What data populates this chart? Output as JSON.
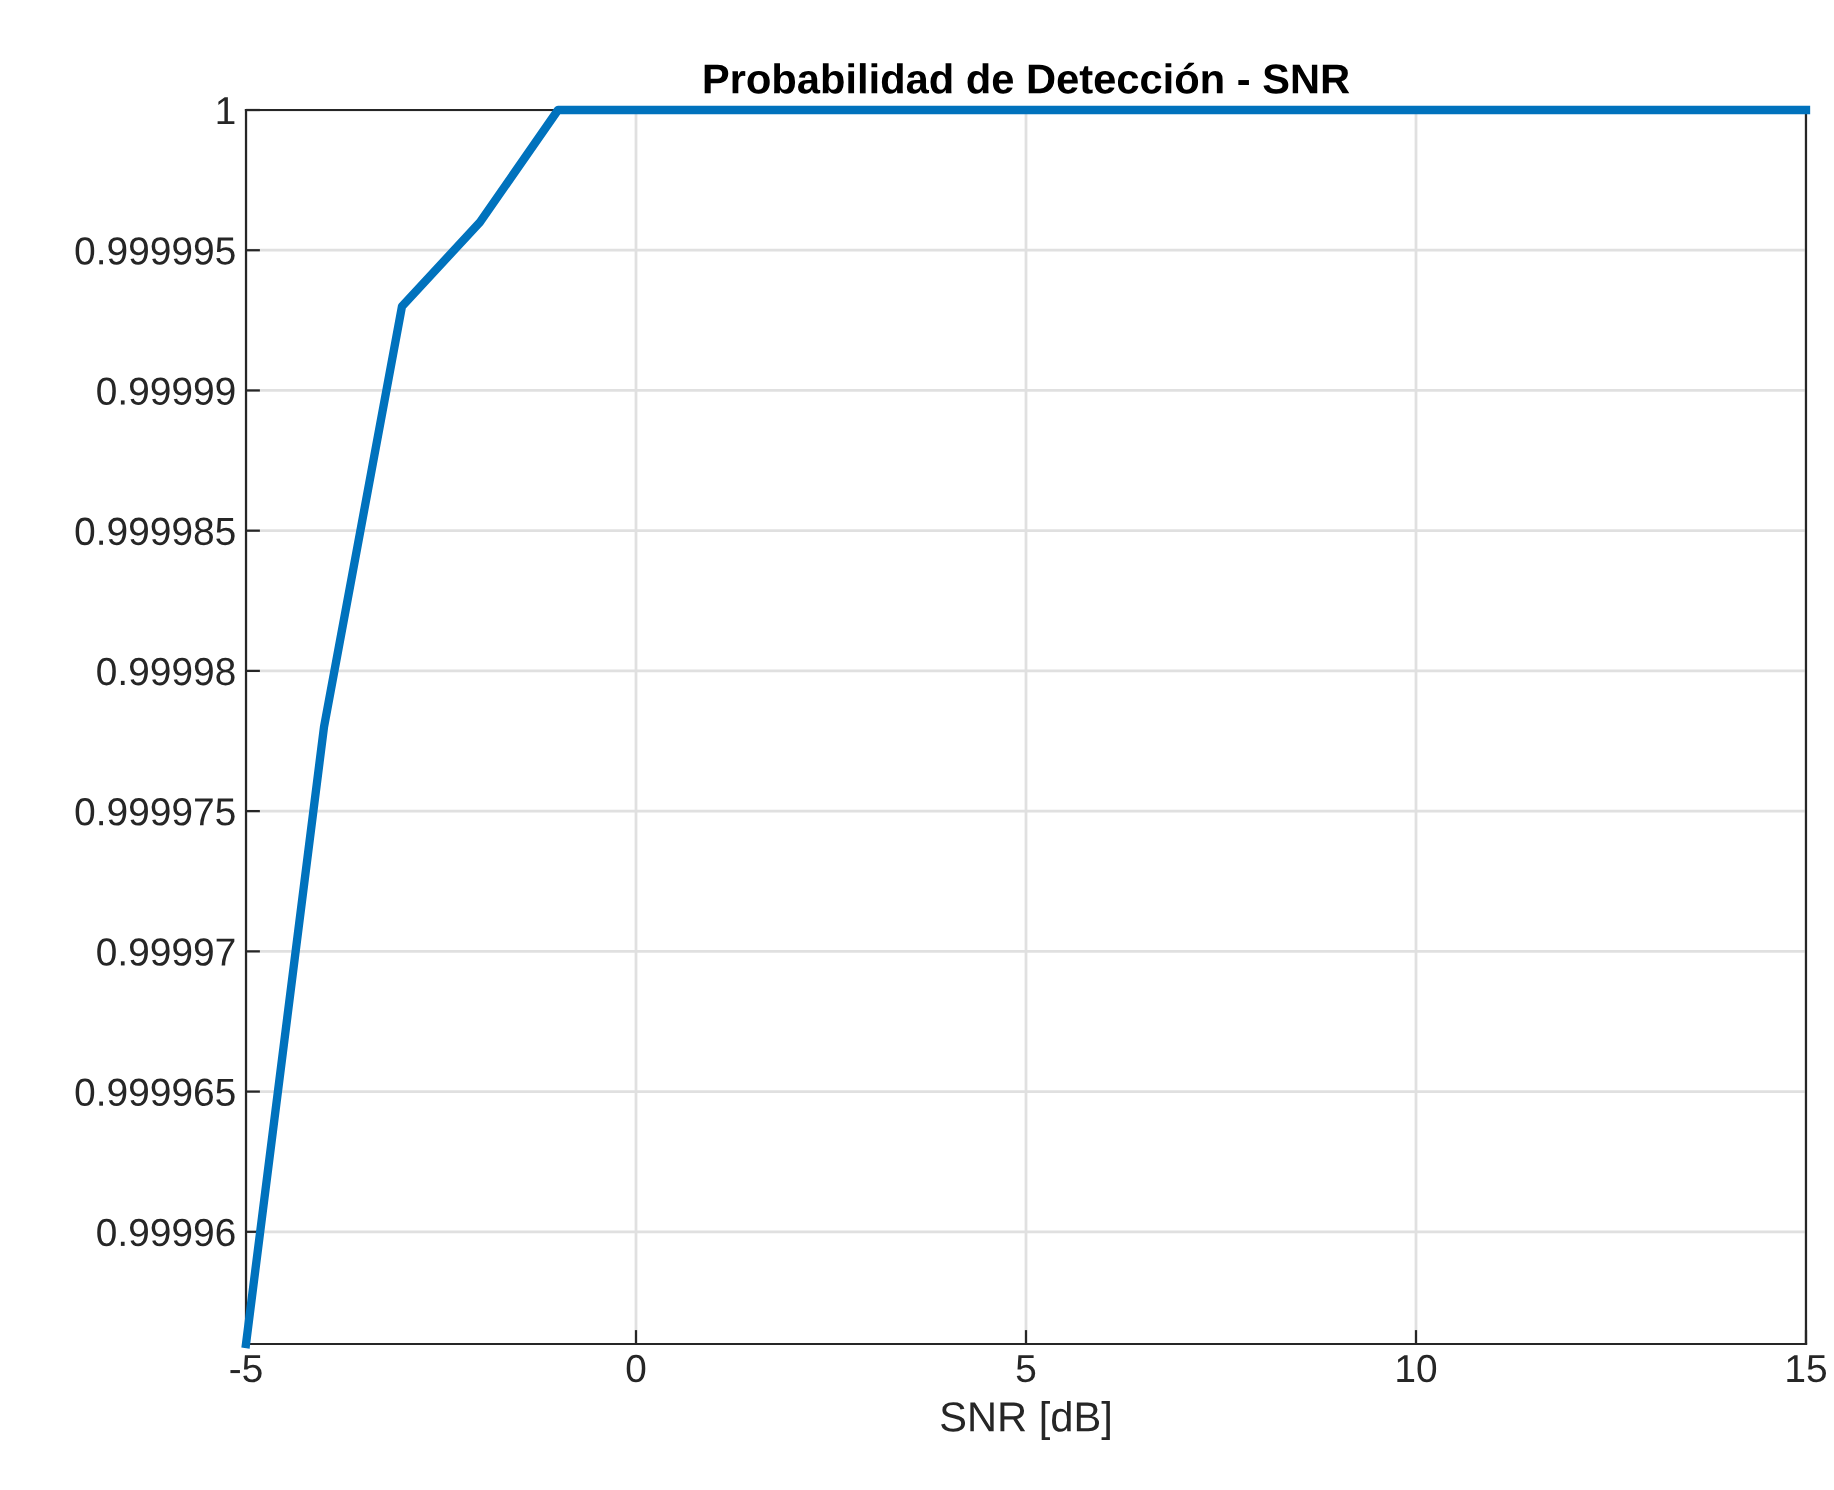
{
  "chart_data": {
    "type": "line",
    "title": "Probabilidad de Detección - SNR",
    "xlabel": "SNR [dB]",
    "x": [
      -5,
      -4,
      -3,
      -2,
      -1,
      0,
      1,
      2,
      3,
      4,
      5,
      6,
      7,
      8,
      9,
      10,
      11,
      12,
      13,
      14,
      15
    ],
    "series": [
      {
        "color": "#0072bd",
        "values": [
          0.999956,
          0.999978,
          0.999993,
          0.999996,
          1,
          1,
          1,
          1,
          1,
          1,
          1,
          1,
          1,
          1,
          1,
          1,
          1,
          1,
          1,
          1,
          1
        ]
      }
    ],
    "xlim": [
      -5,
      15
    ],
    "xticks": [
      -5,
      0,
      5,
      10,
      15
    ],
    "ylim": [
      0.999956,
      1
    ],
    "yticks": [
      0.99996,
      0.999965,
      0.99997,
      0.999975,
      0.99998,
      0.999985,
      0.99999,
      0.999995,
      1
    ],
    "grid": true,
    "marker": "none",
    "line_style": "solid"
  }
}
